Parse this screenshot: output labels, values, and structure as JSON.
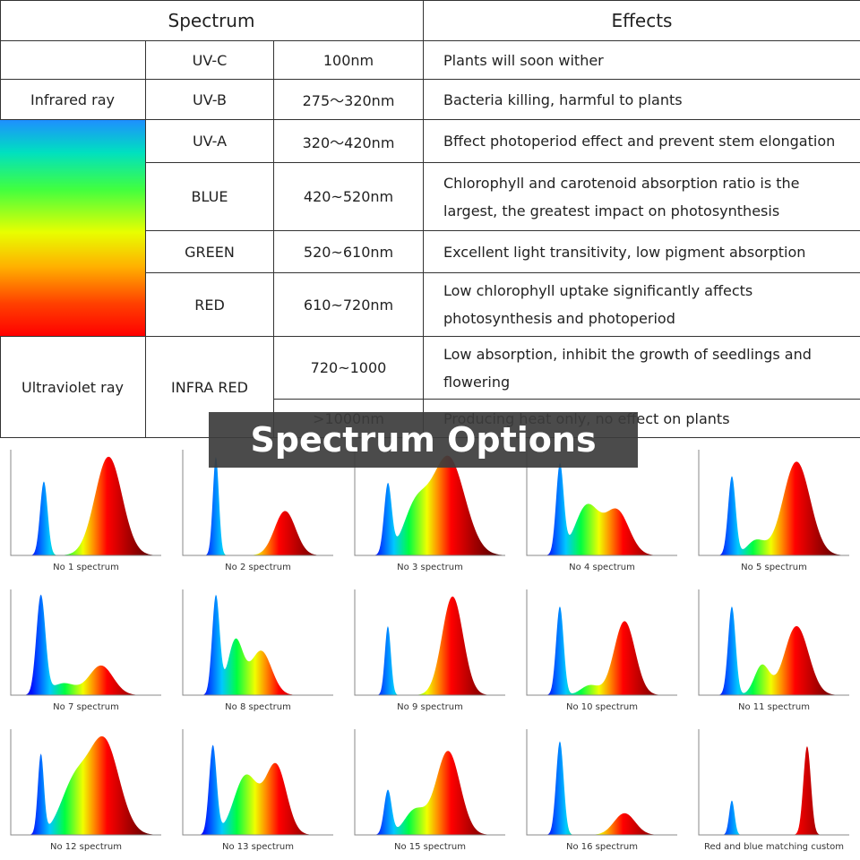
{
  "table": {
    "headers": [
      "Spectrum",
      "Effects"
    ],
    "side_labels": [
      "Infrared ray",
      "Ultraviolet ray"
    ],
    "rows": [
      {
        "band": "UV-C",
        "range": "100nm",
        "effect": "Plants will soon wither"
      },
      {
        "band": "UV-B",
        "range": "275～320nm",
        "effect": "Bacteria killing, harmful to plants"
      },
      {
        "band": "UV-A",
        "range": "320～420nm",
        "effect": "Bffect photoperiod effect and prevent stem elongation"
      },
      {
        "band": "BLUE",
        "range": "420~520nm",
        "effect": "Chlorophyll and carotenoid absorption ratio is the largest, the greatest impact on photosynthesis"
      },
      {
        "band": "GREEN",
        "range": "520~610nm",
        "effect": "Excellent light transitivity, low pigment absorption"
      },
      {
        "band": "RED",
        "range": "610~720nm",
        "effect": "Low chlorophyll uptake significantly affects photosynthesis and photoperiod"
      },
      {
        "band": "INFRA RED",
        "range": "720~1000",
        "effect": "Low absorption, inhibit the growth of seedlings and flowering"
      },
      {
        "range": ">1000nm",
        "effect": "Producing heat only, no effect on plants"
      }
    ]
  },
  "banner": "Spectrum Options",
  "spectra": [
    "No 1 spectrum",
    "No 2 spectrum",
    "No 3 spectrum",
    "No 4 spectrum",
    "No 5 spectrum",
    "No 7 spectrum",
    "No 8 spectrum",
    "No 9 spectrum",
    "No 10 spectrum",
    "No 11 spectrum",
    "No 12 spectrum",
    "No 13 spectrum",
    "No 15 spectrum",
    "No 16 spectrum",
    "Red and blue matching custom"
  ]
}
